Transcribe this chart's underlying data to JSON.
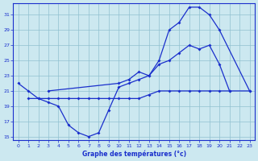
{
  "title": "Graphe des températures (°c)",
  "bg_color": "#cce8f0",
  "line_color": "#1a2fcc",
  "xlim": [
    -0.5,
    23.5
  ],
  "ylim": [
    14.5,
    32.5
  ],
  "xticks": [
    0,
    1,
    2,
    3,
    4,
    5,
    6,
    7,
    8,
    9,
    10,
    11,
    12,
    13,
    14,
    15,
    16,
    17,
    18,
    19,
    20,
    21,
    22,
    23
  ],
  "yticks": [
    15,
    17,
    19,
    21,
    23,
    25,
    27,
    29,
    31
  ],
  "line1_x": [
    0,
    1,
    2,
    3,
    4,
    5,
    6,
    7,
    8,
    9,
    10,
    11,
    12,
    13,
    14,
    15,
    16,
    17,
    18,
    19,
    20,
    21
  ],
  "line1_y": [
    22,
    21,
    20,
    19.5,
    19,
    16.5,
    15.5,
    15,
    15.5,
    18.5,
    21.5,
    22,
    22.5,
    23,
    24.5,
    25,
    26,
    27,
    26.5,
    27,
    24.5,
    21
  ],
  "line2_x": [
    3,
    10,
    11,
    12,
    13,
    14,
    15,
    16,
    17,
    18,
    19,
    20,
    23
  ],
  "line2_y": [
    21,
    22,
    22.5,
    23.5,
    23,
    25,
    29,
    30,
    32,
    32,
    31,
    29,
    21
  ],
  "line3_x": [
    1,
    2,
    3,
    4,
    5,
    6,
    7,
    8,
    9,
    10,
    11,
    12,
    13,
    14,
    15,
    16,
    17,
    18,
    19,
    20,
    21,
    23
  ],
  "line3_y": [
    20,
    20,
    20,
    20,
    20,
    20,
    20,
    20,
    20,
    20,
    20,
    20,
    20.5,
    21,
    21,
    21,
    21,
    21,
    21,
    21,
    21,
    21
  ]
}
